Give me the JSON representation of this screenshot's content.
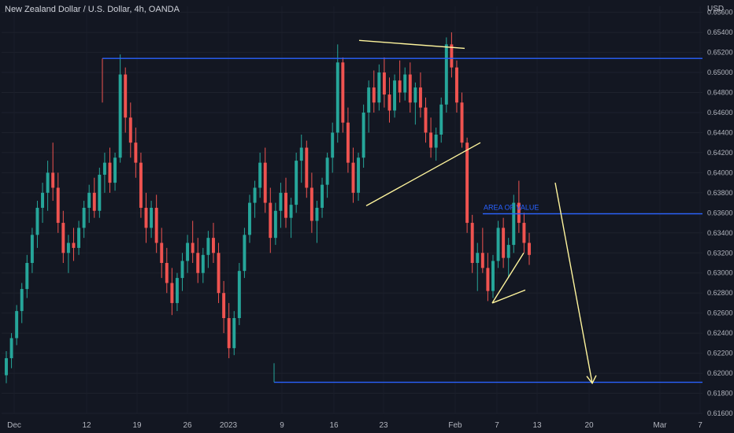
{
  "chart_data": {
    "type": "candlestick",
    "title": "New Zealand Dollar / U.S. Dollar, 4h, OANDA",
    "currency": "USD",
    "y_axis": {
      "ticks": [
        "0.65600",
        "0.65400",
        "0.65200",
        "0.65000",
        "0.64800",
        "0.64600",
        "0.64400",
        "0.64200",
        "0.64000",
        "0.63800",
        "0.63600",
        "0.63400",
        "0.63200",
        "0.63000",
        "0.62800",
        "0.62600",
        "0.62400",
        "0.62200",
        "0.62000",
        "0.61800",
        "0.61600"
      ],
      "range": [
        0.616,
        0.6566
      ]
    },
    "x_axis": {
      "ticks": [
        "Dec",
        "12",
        "19",
        "26",
        "2023",
        "9",
        "16",
        "23",
        "Feb",
        "7",
        "13",
        "20",
        "Mar",
        "7"
      ]
    },
    "horizontal_levels": [
      {
        "price": 0.6514
      },
      {
        "price": 0.6359,
        "label": "AREA OF VALUE"
      },
      {
        "price": 0.6191
      }
    ],
    "pattern_lines": [
      {
        "from": [
          0.6532
        ],
        "to": [
          0.6524
        ]
      },
      {
        "from": [
          0.6367
        ],
        "to": [
          0.643
        ]
      },
      {
        "from": [
          0.627
        ],
        "to": [
          0.6283
        ]
      },
      {
        "from": [
          0.627
        ],
        "to": [
          0.632
        ]
      }
    ],
    "forecast_arrow": {
      "from_price": 0.639,
      "to_price": 0.619
    },
    "colors": {
      "up": "#26a69a",
      "down": "#ef5350",
      "level": "#2962ff",
      "pattern": "#fff59d",
      "background": "#131722"
    },
    "candles": [
      [
        0.6198,
        0.6222,
        0.619,
        0.6215
      ],
      [
        0.6215,
        0.624,
        0.6205,
        0.6235
      ],
      [
        0.6235,
        0.6268,
        0.6228,
        0.6262
      ],
      [
        0.6262,
        0.629,
        0.625,
        0.6284
      ],
      [
        0.6284,
        0.6318,
        0.6275,
        0.631
      ],
      [
        0.631,
        0.6345,
        0.63,
        0.6338
      ],
      [
        0.6338,
        0.6372,
        0.6325,
        0.6365
      ],
      [
        0.6365,
        0.639,
        0.635,
        0.638
      ],
      [
        0.638,
        0.6412,
        0.6362,
        0.64
      ],
      [
        0.64,
        0.643,
        0.6372,
        0.6385
      ],
      [
        0.6385,
        0.64,
        0.634,
        0.635
      ],
      [
        0.635,
        0.6362,
        0.631,
        0.632
      ],
      [
        0.632,
        0.6338,
        0.63,
        0.633
      ],
      [
        0.633,
        0.6345,
        0.6312,
        0.6325
      ],
      [
        0.6325,
        0.6352,
        0.6318,
        0.6345
      ],
      [
        0.6345,
        0.6372,
        0.6335,
        0.6365
      ],
      [
        0.6365,
        0.6388,
        0.635,
        0.638
      ],
      [
        0.638,
        0.6395,
        0.6355,
        0.6362
      ],
      [
        0.6362,
        0.6405,
        0.6355,
        0.6398
      ],
      [
        0.6398,
        0.642,
        0.638,
        0.641
      ],
      [
        0.641,
        0.6425,
        0.638,
        0.639
      ],
      [
        0.639,
        0.642,
        0.6382,
        0.6415
      ],
      [
        0.6415,
        0.6518,
        0.641,
        0.6498
      ],
      [
        0.6498,
        0.6505,
        0.644,
        0.6455
      ],
      [
        0.6455,
        0.647,
        0.6415,
        0.643
      ],
      [
        0.643,
        0.6445,
        0.6395,
        0.641
      ],
      [
        0.641,
        0.642,
        0.6355,
        0.6365
      ],
      [
        0.6365,
        0.638,
        0.633,
        0.6345
      ],
      [
        0.6345,
        0.6372,
        0.6335,
        0.6365
      ],
      [
        0.6365,
        0.6378,
        0.632,
        0.633
      ],
      [
        0.633,
        0.6345,
        0.6295,
        0.631
      ],
      [
        0.631,
        0.6325,
        0.628,
        0.629
      ],
      [
        0.629,
        0.6305,
        0.6258,
        0.627
      ],
      [
        0.627,
        0.63,
        0.6262,
        0.6295
      ],
      [
        0.6295,
        0.632,
        0.6282,
        0.6312
      ],
      [
        0.6312,
        0.6338,
        0.63,
        0.633
      ],
      [
        0.633,
        0.6352,
        0.631,
        0.632
      ],
      [
        0.632,
        0.6335,
        0.629,
        0.63
      ],
      [
        0.63,
        0.6325,
        0.629,
        0.6318
      ],
      [
        0.6318,
        0.6342,
        0.6305,
        0.6335
      ],
      [
        0.6335,
        0.635,
        0.631,
        0.632
      ],
      [
        0.632,
        0.633,
        0.627,
        0.628
      ],
      [
        0.628,
        0.6292,
        0.624,
        0.6255
      ],
      [
        0.6255,
        0.627,
        0.6215,
        0.6225
      ],
      [
        0.6225,
        0.6262,
        0.6218,
        0.6255
      ],
      [
        0.6255,
        0.631,
        0.6248,
        0.6302
      ],
      [
        0.6302,
        0.6345,
        0.6295,
        0.6338
      ],
      [
        0.6338,
        0.6378,
        0.633,
        0.637
      ],
      [
        0.637,
        0.6392,
        0.6355,
        0.6385
      ],
      [
        0.6385,
        0.642,
        0.6375,
        0.641
      ],
      [
        0.641,
        0.6425,
        0.636,
        0.637
      ],
      [
        0.637,
        0.6385,
        0.632,
        0.6335
      ],
      [
        0.6335,
        0.637,
        0.6328,
        0.6362
      ],
      [
        0.6362,
        0.639,
        0.6345,
        0.638
      ],
      [
        0.638,
        0.6395,
        0.6345,
        0.6355
      ],
      [
        0.6355,
        0.6375,
        0.6335,
        0.6368
      ],
      [
        0.6368,
        0.642,
        0.636,
        0.6412
      ],
      [
        0.6412,
        0.6438,
        0.639,
        0.6425
      ],
      [
        0.6425,
        0.6432,
        0.6375,
        0.6385
      ],
      [
        0.6385,
        0.64,
        0.634,
        0.6352
      ],
      [
        0.6352,
        0.6372,
        0.633,
        0.6365
      ],
      [
        0.6365,
        0.6395,
        0.6355,
        0.6388
      ],
      [
        0.6388,
        0.642,
        0.6375,
        0.6415
      ],
      [
        0.6415,
        0.645,
        0.64,
        0.644
      ],
      [
        0.644,
        0.6528,
        0.643,
        0.651
      ],
      [
        0.651,
        0.6515,
        0.644,
        0.645
      ],
      [
        0.645,
        0.6465,
        0.64,
        0.641
      ],
      [
        0.641,
        0.6425,
        0.637,
        0.638
      ],
      [
        0.638,
        0.642,
        0.6372,
        0.6415
      ],
      [
        0.6415,
        0.6468,
        0.6405,
        0.646
      ],
      [
        0.646,
        0.6492,
        0.644,
        0.6485
      ],
      [
        0.6485,
        0.6502,
        0.646,
        0.647
      ],
      [
        0.647,
        0.6508,
        0.6462,
        0.65
      ],
      [
        0.65,
        0.6515,
        0.6465,
        0.6478
      ],
      [
        0.6478,
        0.6495,
        0.645,
        0.6462
      ],
      [
        0.6462,
        0.6498,
        0.6455,
        0.6492
      ],
      [
        0.6492,
        0.6512,
        0.647,
        0.648
      ],
      [
        0.648,
        0.6505,
        0.6472,
        0.6498
      ],
      [
        0.6498,
        0.651,
        0.646,
        0.647
      ],
      [
        0.647,
        0.649,
        0.6448,
        0.6485
      ],
      [
        0.6485,
        0.65,
        0.6455,
        0.6465
      ],
      [
        0.6465,
        0.6475,
        0.643,
        0.644
      ],
      [
        0.644,
        0.6455,
        0.6415,
        0.6425
      ],
      [
        0.6425,
        0.6445,
        0.6412,
        0.6438
      ],
      [
        0.6438,
        0.6475,
        0.643,
        0.6468
      ],
      [
        0.6468,
        0.6535,
        0.646,
        0.6528
      ],
      [
        0.6528,
        0.654,
        0.6495,
        0.6505
      ],
      [
        0.6505,
        0.6512,
        0.646,
        0.647
      ],
      [
        0.647,
        0.648,
        0.6425,
        0.643
      ],
      [
        0.643,
        0.6435,
        0.634,
        0.635
      ],
      [
        0.635,
        0.6358,
        0.63,
        0.631
      ],
      [
        0.631,
        0.633,
        0.6282,
        0.632
      ],
      [
        0.632,
        0.6345,
        0.63,
        0.6305
      ],
      [
        0.6305,
        0.632,
        0.6272,
        0.6282
      ],
      [
        0.6282,
        0.6318,
        0.6275,
        0.6312
      ],
      [
        0.6312,
        0.6352,
        0.6305,
        0.6345
      ],
      [
        0.6345,
        0.6355,
        0.6305,
        0.6315
      ],
      [
        0.6315,
        0.6335,
        0.6295,
        0.6328
      ],
      [
        0.6328,
        0.6378,
        0.632,
        0.637
      ],
      [
        0.637,
        0.6392,
        0.634,
        0.635
      ],
      [
        0.635,
        0.636,
        0.632,
        0.633
      ],
      [
        0.633,
        0.634,
        0.6308,
        0.6318
      ]
    ]
  }
}
